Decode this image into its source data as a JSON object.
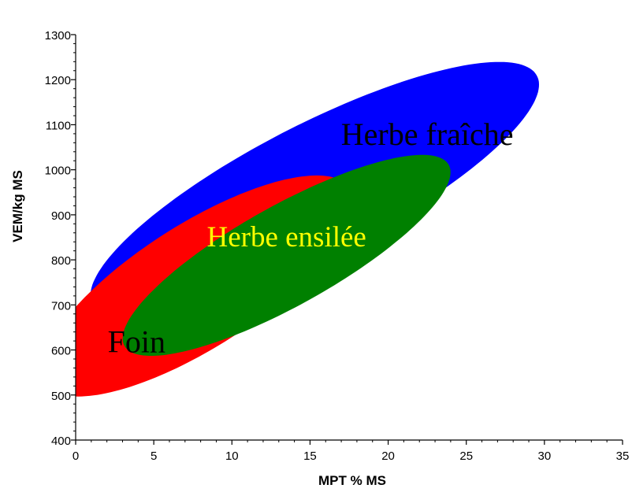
{
  "chart_data": {
    "type": "scatter",
    "title": "",
    "xlabel": "MPT % MS",
    "ylabel": "VEM/kg MS",
    "xlim": [
      0,
      35
    ],
    "ylim": [
      400,
      1300
    ],
    "x_ticks": [
      "0",
      "5",
      "10",
      "15",
      "20",
      "25",
      "30",
      "35"
    ],
    "y_ticks": [
      "400",
      "500",
      "600",
      "700",
      "800",
      "900",
      "1000",
      "1100",
      "1200",
      "1300"
    ],
    "grid": false,
    "legend": "none",
    "regions": [
      {
        "label": "Herbe fraîche",
        "color": "#0000ff",
        "label_color": "#000000",
        "center": [
          15.3,
          955
        ],
        "semi_axis_major": [
          14.2,
          255
        ],
        "semi_axis_minor": [
          -2.1,
          126
        ],
        "label_at": [
          22.5,
          1055
        ]
      },
      {
        "label": "Foin",
        "color": "#ff0000",
        "label_color": "#000000",
        "center": [
          7.8,
          742
        ],
        "semi_axis_major": [
          9.6,
          224
        ],
        "semi_axis_minor": [
          -2.8,
          100
        ],
        "label_at": [
          3.9,
          595
        ]
      },
      {
        "label": "Herbe ensilée",
        "color": "#008000",
        "label_color": "#ffff00",
        "center": [
          13.5,
          810
        ],
        "semi_axis_major": [
          10.3,
          205
        ],
        "semi_axis_minor": [
          -2.0,
          88
        ],
        "label_at": [
          13.5,
          830
        ]
      }
    ]
  }
}
